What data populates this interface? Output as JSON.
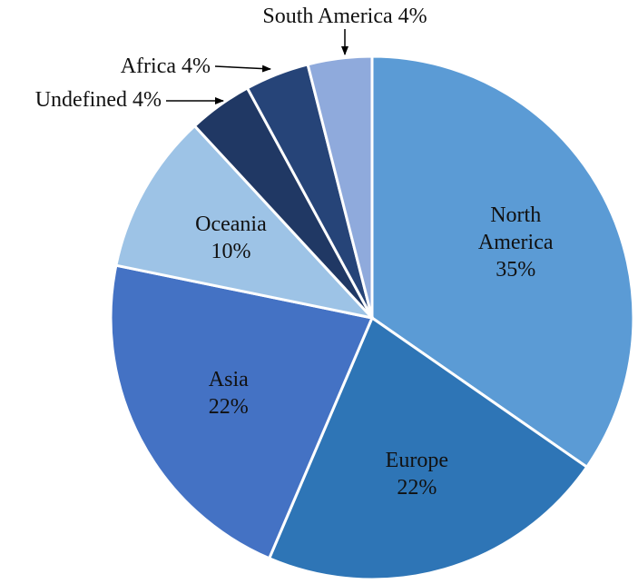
{
  "chart_data": {
    "type": "pie",
    "categories": [
      "North America",
      "Europe",
      "Asia",
      "Oceania",
      "Undefined",
      "Africa",
      "South America"
    ],
    "values": [
      35,
      22,
      22,
      10,
      4,
      4,
      4
    ],
    "value_labels": [
      "35%",
      "22%",
      "22%",
      "10%",
      "4%",
      "4%",
      "4%"
    ],
    "colors": [
      "#5b9bd5",
      "#2e75b6",
      "#4472c4",
      "#9dc3e6",
      "#203864",
      "#264478",
      "#8faadc"
    ]
  }
}
